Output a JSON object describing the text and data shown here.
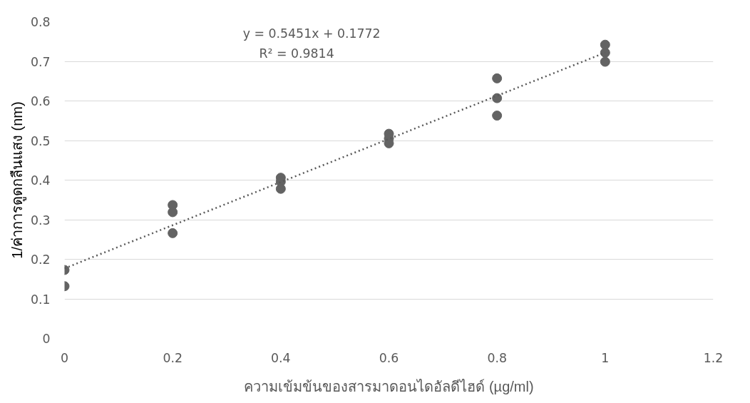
{
  "chart_data": {
    "type": "scatter",
    "xlabel": "ความเข้มข้นของสารมาดอนไดอัลดีไฮด์ (µg/ml)",
    "ylabel": "1/ค่าการดูดกลืนแสง (nm)",
    "series": [
      {
        "color": "#636363",
        "marker": "circle",
        "x": [
          0,
          0,
          0.2,
          0.2,
          0.2,
          0.4,
          0.4,
          0.4,
          0.6,
          0.6,
          0.6,
          0.8,
          0.8,
          0.8,
          1,
          1,
          1
        ],
        "values": [
          0.173,
          0.132,
          0.337,
          0.319,
          0.266,
          0.406,
          0.396,
          0.378,
          0.517,
          0.505,
          0.493,
          0.657,
          0.607,
          0.563,
          0.742,
          0.722,
          0.699
        ]
      },
      {
        "type": "line",
        "color": "#595959",
        "line_style": "dotted",
        "x": [
          0,
          1
        ],
        "values": [
          0.177,
          0.722
        ]
      }
    ],
    "annotations": [
      "y = 0.5451x + 0.1772",
      "R² = 0.9814"
    ],
    "xlim": [
      0,
      1.2
    ],
    "xticks": [
      0,
      0.2,
      0.4,
      0.6,
      0.8,
      1,
      1.2
    ],
    "ylim": [
      0,
      0.8
    ],
    "yticks": [
      0,
      0.1,
      0.2,
      0.3,
      0.4,
      0.5,
      0.6,
      0.7,
      0.8
    ],
    "grid": "y"
  }
}
